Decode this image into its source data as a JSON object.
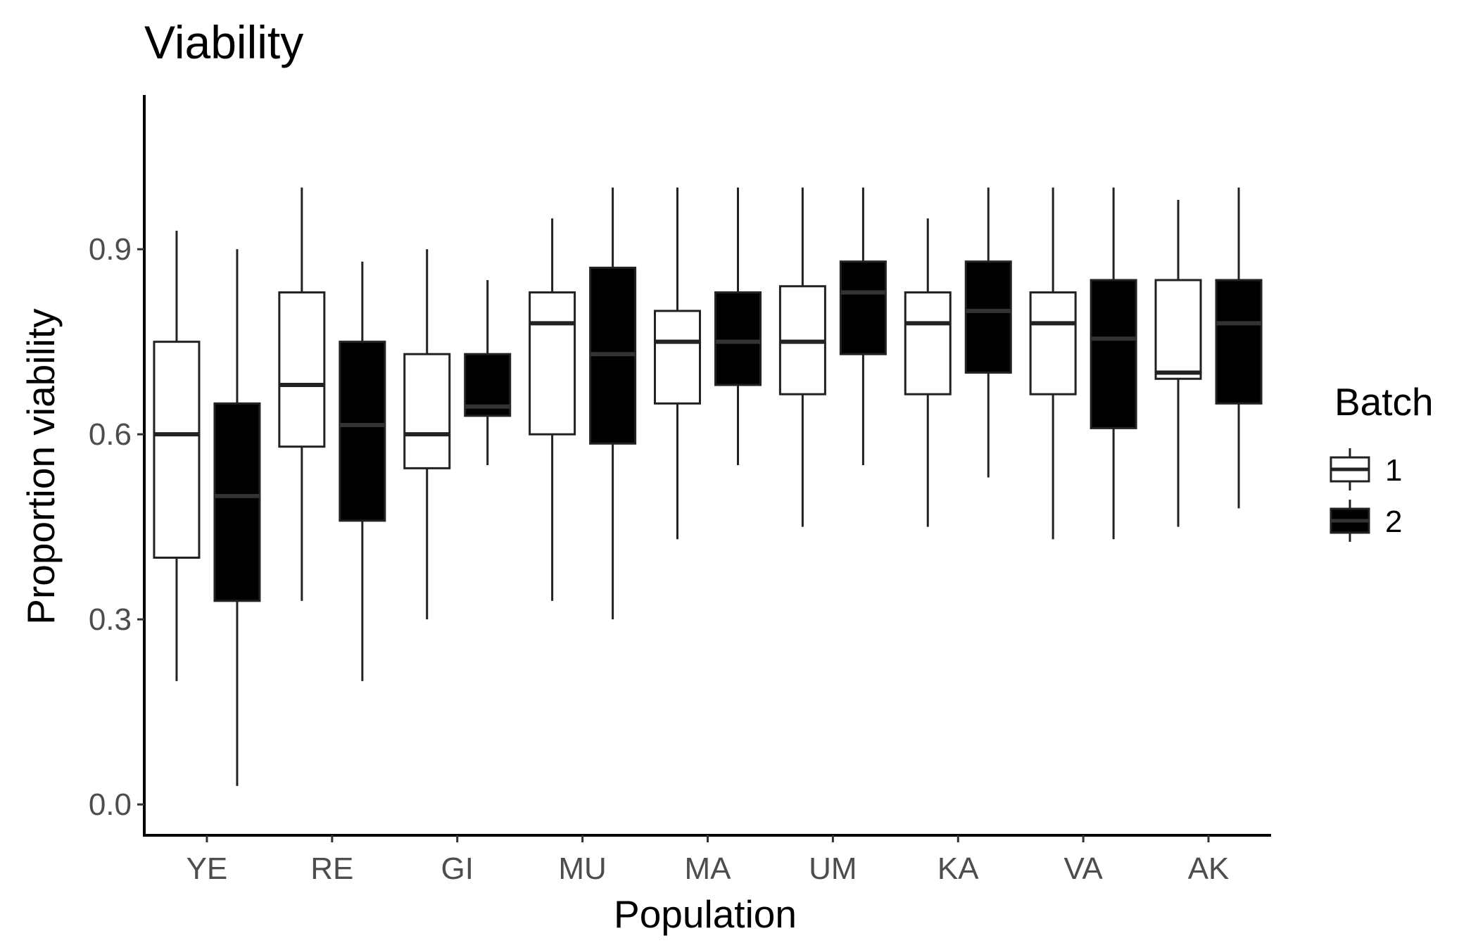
{
  "chart_data": {
    "type": "boxplot",
    "title": "Viability",
    "xlabel": "Population",
    "ylabel": "Proportion viability",
    "ylim": [
      -0.05,
      1.15
    ],
    "yticks": [
      "0.0",
      "0.3",
      "0.6",
      "0.9"
    ],
    "ytick_values": [
      0.0,
      0.3,
      0.6,
      0.9
    ],
    "grid": false,
    "categories": [
      "YE",
      "RE",
      "GI",
      "MU",
      "MA",
      "UM",
      "KA",
      "VA",
      "AK"
    ],
    "legend": {
      "title": "Batch",
      "position": "right",
      "entries": [
        "1",
        "2"
      ]
    },
    "series": [
      {
        "name": "1",
        "fill": "#ffffff",
        "line": "#222222",
        "boxes": [
          {
            "min": 0.2,
            "q1": 0.4,
            "median": 0.6,
            "q3": 0.75,
            "max": 0.93
          },
          {
            "min": 0.33,
            "q1": 0.58,
            "median": 0.68,
            "q3": 0.83,
            "max": 1.0
          },
          {
            "min": 0.3,
            "q1": 0.545,
            "median": 0.6,
            "q3": 0.73,
            "max": 0.9
          },
          {
            "min": 0.33,
            "q1": 0.6,
            "median": 0.78,
            "q3": 0.83,
            "max": 0.95
          },
          {
            "min": 0.43,
            "q1": 0.65,
            "median": 0.75,
            "q3": 0.8,
            "max": 1.0
          },
          {
            "min": 0.45,
            "q1": 0.665,
            "median": 0.75,
            "q3": 0.84,
            "max": 1.0
          },
          {
            "min": 0.45,
            "q1": 0.665,
            "median": 0.78,
            "q3": 0.83,
            "max": 0.95
          },
          {
            "min": 0.43,
            "q1": 0.665,
            "median": 0.78,
            "q3": 0.83,
            "max": 1.0
          },
          {
            "min": 0.45,
            "q1": 0.69,
            "median": 0.7,
            "q3": 0.85,
            "max": 0.98
          }
        ]
      },
      {
        "name": "2",
        "fill": "#000000",
        "line": "#222222",
        "median_color": "#333333",
        "boxes": [
          {
            "min": 0.03,
            "q1": 0.33,
            "median": 0.5,
            "q3": 0.65,
            "max": 0.9
          },
          {
            "min": 0.2,
            "q1": 0.46,
            "median": 0.615,
            "q3": 0.75,
            "max": 0.88
          },
          {
            "min": 0.55,
            "q1": 0.63,
            "median": 0.645,
            "q3": 0.73,
            "max": 0.85
          },
          {
            "min": 0.3,
            "q1": 0.585,
            "median": 0.73,
            "q3": 0.87,
            "max": 1.0
          },
          {
            "min": 0.55,
            "q1": 0.68,
            "median": 0.75,
            "q3": 0.83,
            "max": 1.0
          },
          {
            "min": 0.55,
            "q1": 0.73,
            "median": 0.83,
            "q3": 0.88,
            "max": 1.0
          },
          {
            "min": 0.53,
            "q1": 0.7,
            "median": 0.8,
            "q3": 0.88,
            "max": 1.0
          },
          {
            "min": 0.43,
            "q1": 0.61,
            "median": 0.755,
            "q3": 0.85,
            "max": 1.0
          },
          {
            "min": 0.48,
            "q1": 0.65,
            "median": 0.78,
            "q3": 0.85,
            "max": 1.0
          }
        ]
      }
    ]
  }
}
